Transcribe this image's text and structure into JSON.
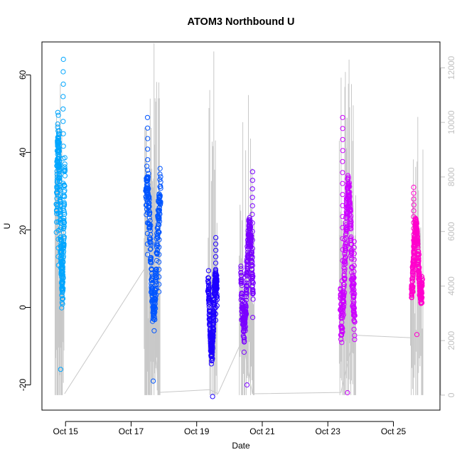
{
  "chart_data": {
    "type": "scatter",
    "title": "ATOM3 Northbound U",
    "xlabel": "Date",
    "ylabel": "U",
    "x_axis": {
      "unit": "days in October",
      "range": [
        14.28,
        26.42
      ],
      "ticks": [
        {
          "value": 15,
          "label": "Oct 15"
        },
        {
          "value": 17,
          "label": "Oct 17"
        },
        {
          "value": 19,
          "label": "Oct 19"
        },
        {
          "value": 21,
          "label": "Oct 21"
        },
        {
          "value": 23,
          "label": "Oct 23"
        },
        {
          "value": 25,
          "label": "Oct 25"
        }
      ]
    },
    "y_axis": {
      "range": [
        -26.5,
        68.5
      ],
      "ticks": [
        {
          "value": -20,
          "label": "-20"
        },
        {
          "value": 0,
          "label": "0"
        },
        {
          "value": 20,
          "label": "20"
        },
        {
          "value": 40,
          "label": "40"
        },
        {
          "value": 60,
          "label": "60"
        }
      ]
    },
    "y2_axis": {
      "range": [
        -550,
        12950
      ],
      "color": "#c0c0c0",
      "ticks": [
        {
          "value": 0,
          "label": "0"
        },
        {
          "value": 2000,
          "label": "2000"
        },
        {
          "value": 4000,
          "label": "4000"
        },
        {
          "value": 6000,
          "label": "6000"
        },
        {
          "value": 8000,
          "label": "8000"
        },
        {
          "value": 10000,
          "label": "10000"
        },
        {
          "value": 12000,
          "label": "12000"
        }
      ]
    },
    "grid": false,
    "legend": "none",
    "marker": "open-circle",
    "series": [
      {
        "color": "#00a6ff",
        "x_range": [
          14.72,
          14.98
        ],
        "y_range": [
          -16,
          65
        ],
        "spikes": [
          {
            "x": 14.78,
            "y": 40
          },
          {
            "x": 14.93,
            "y": 64
          }
        ],
        "min_y": -16,
        "max_y": 65
      },
      {
        "color": "#0055ff",
        "x_range": [
          17.45,
          17.9
        ],
        "y_range": [
          -19,
          49
        ],
        "spikes": [
          {
            "x": 17.5,
            "y": 49
          },
          {
            "x": 17.85,
            "y": 29
          }
        ],
        "min_y": -19,
        "max_y": 49
      },
      {
        "color": "#1e00ff",
        "x_range": [
          19.35,
          19.62
        ],
        "y_range": [
          -23,
          19
        ],
        "spikes": [
          {
            "x": 19.58,
            "y": 18
          }
        ],
        "min_y": -23,
        "max_y": 19
      },
      {
        "color": "#7a00ff",
        "x_range": [
          20.35,
          20.72
        ],
        "y_range": [
          -20,
          35
        ],
        "spikes": [
          {
            "x": 20.7,
            "y": 35
          }
        ],
        "min_y": -20,
        "max_y": 35
      },
      {
        "color": "#cc00ff",
        "x_range": [
          23.38,
          23.82
        ],
        "y_range": [
          -22,
          49
        ],
        "spikes": [
          {
            "x": 23.45,
            "y": 49
          },
          {
            "x": 23.8,
            "y": 17
          }
        ],
        "min_y": -22,
        "max_y": 49
      },
      {
        "color": "#ff00cc",
        "x_range": [
          25.55,
          25.88
        ],
        "y_range": [
          -7,
          31
        ],
        "spikes": [
          {
            "x": 25.62,
            "y": 31
          }
        ],
        "min_y": -7,
        "max_y": 31
      }
    ],
    "secondary_line": {
      "color": "#c8c8c8",
      "axis": "y2",
      "baseline": [
        {
          "x": 14.97,
          "y": 50
        },
        {
          "x": 17.5,
          "y": 4800
        },
        {
          "x": 17.85,
          "y": 100
        },
        {
          "x": 19.4,
          "y": 200
        },
        {
          "x": 19.65,
          "y": 50
        },
        {
          "x": 20.4,
          "y": 2050
        },
        {
          "x": 20.7,
          "y": 50
        },
        {
          "x": 23.4,
          "y": 100
        },
        {
          "x": 23.8,
          "y": 2200
        },
        {
          "x": 25.58,
          "y": 2100
        }
      ],
      "spike_groups": [
        {
          "x_range": [
            14.68,
            14.95
          ],
          "count": 18,
          "max": 11400
        },
        {
          "x_range": [
            17.4,
            17.88
          ],
          "count": 30,
          "max": 12900
        },
        {
          "x_range": [
            19.35,
            19.62
          ],
          "count": 12,
          "max": 12600
        },
        {
          "x_range": [
            20.3,
            20.75
          ],
          "count": 22,
          "max": 11000
        },
        {
          "x_range": [
            23.35,
            23.85
          ],
          "count": 28,
          "max": 12300
        },
        {
          "x_range": [
            25.52,
            25.9
          ],
          "count": 18,
          "max": 10200
        }
      ]
    }
  }
}
